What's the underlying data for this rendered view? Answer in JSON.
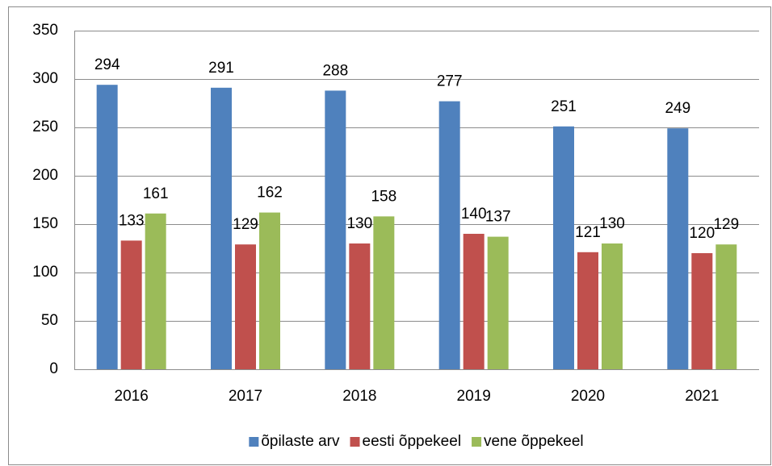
{
  "chart_data": {
    "type": "bar",
    "categories": [
      "2016",
      "2017",
      "2018",
      "2019",
      "2020",
      "2021"
    ],
    "series": [
      {
        "name": "õpilaste arv",
        "color": "#4f81bd",
        "values": [
          294,
          291,
          288,
          277,
          251,
          249
        ]
      },
      {
        "name": "eesti õppekeel",
        "color": "#c0504d",
        "values": [
          133,
          129,
          130,
          140,
          121,
          120
        ]
      },
      {
        "name": "vene õppekeel",
        "color": "#9bbb59",
        "values": [
          161,
          162,
          158,
          137,
          130,
          129
        ]
      }
    ],
    "ylim": [
      0,
      350
    ],
    "yticks": [
      0,
      50,
      100,
      150,
      200,
      250,
      300,
      350
    ],
    "grid": true,
    "legend": "bottom"
  }
}
